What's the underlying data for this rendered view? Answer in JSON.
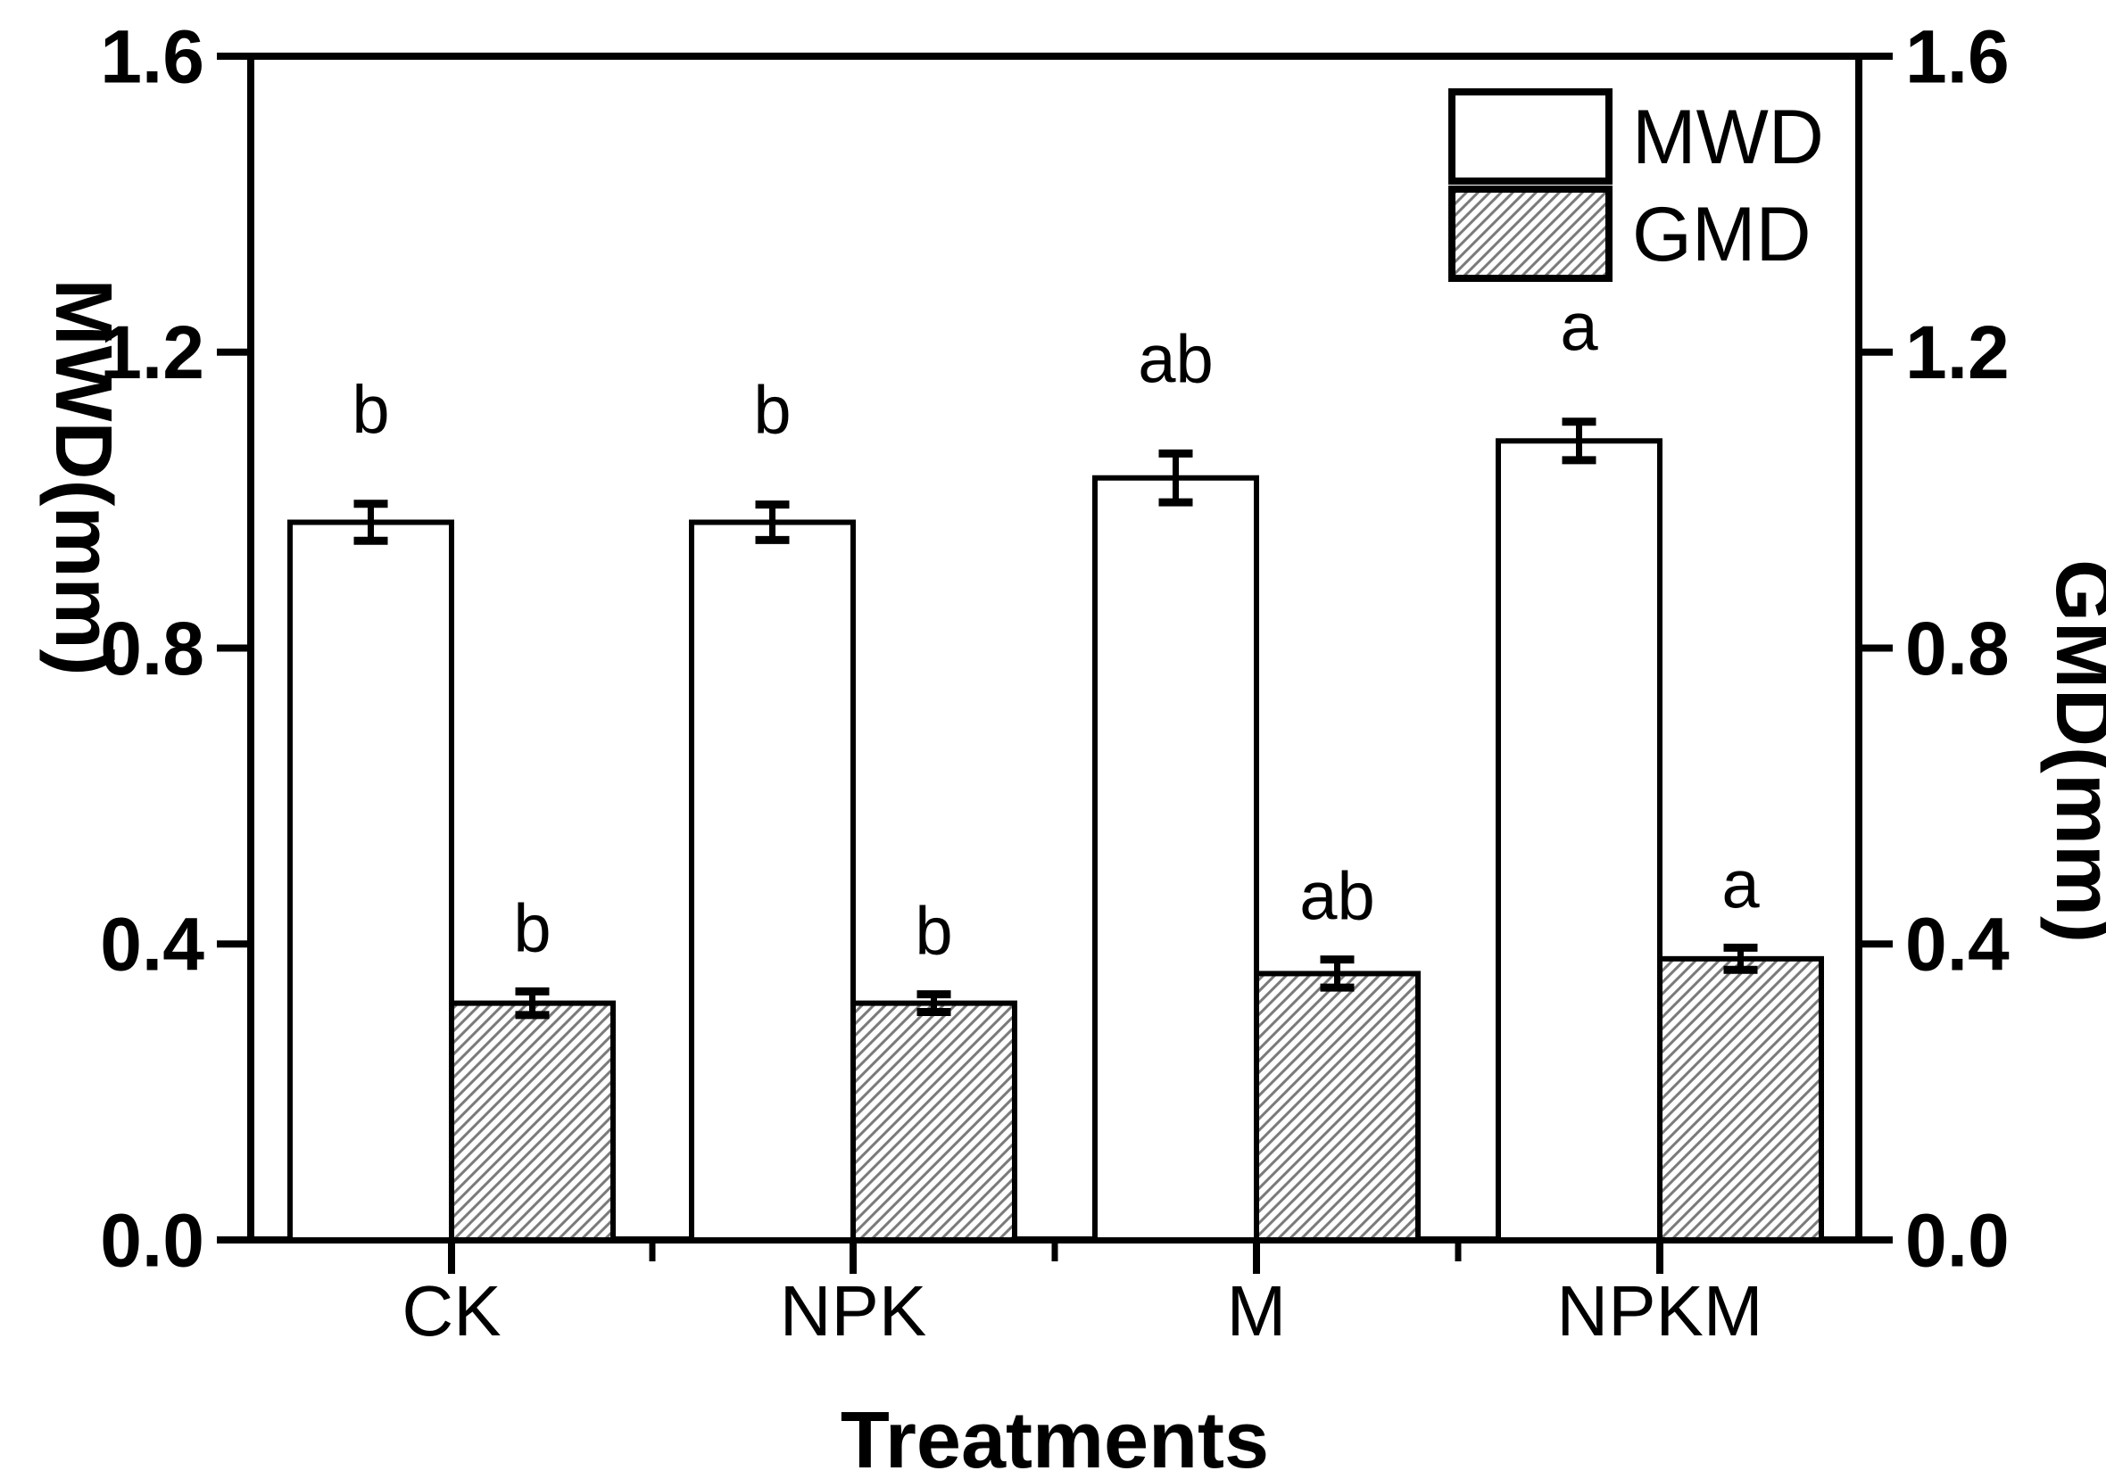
{
  "chart_data": {
    "type": "bar",
    "title": "",
    "categories": [
      "CK",
      "NPK",
      "M",
      "NPKM"
    ],
    "series": [
      {
        "name": "MWD",
        "fill_style": "open",
        "values": [
          0.97,
          0.97,
          1.03,
          1.08
        ],
        "errors": [
          0.025,
          0.024,
          0.033,
          0.026
        ],
        "sig_letters": [
          "b",
          "b",
          "ab",
          "a"
        ]
      },
      {
        "name": "GMD",
        "fill_style": "hatched",
        "values": [
          0.32,
          0.32,
          0.36,
          0.38
        ],
        "errors": [
          0.016,
          0.012,
          0.019,
          0.015
        ],
        "sig_letters": [
          "b",
          "b",
          "ab",
          "a"
        ]
      }
    ],
    "xlabel": "Treatments",
    "ylabel_left": "MWD(mm)",
    "ylabel_right": "GMD(mm)",
    "ylim": [
      0.0,
      1.6
    ],
    "ytick_labels": [
      "0.0",
      "0.4",
      "0.8",
      "1.2",
      "1.6"
    ],
    "legend": {
      "entries": [
        "MWD",
        "GMD"
      ],
      "position": "top-right"
    },
    "grid": false,
    "colors": {
      "foreground": "#000000",
      "background": "#ffffff",
      "bar_fill": "#ffffff",
      "hatch_line": "#7a7a7a"
    }
  }
}
